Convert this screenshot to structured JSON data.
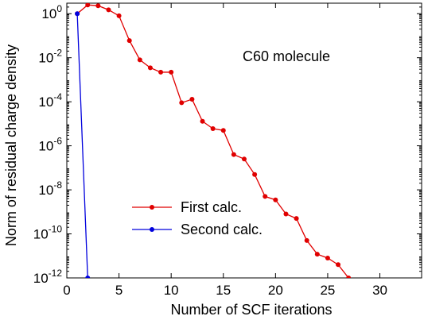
{
  "chart_data": {
    "type": "line",
    "xlabel": "Number of SCF iterations",
    "ylabel": "Norm of residual charge density",
    "xlim": [
      0,
      34
    ],
    "ylim": [
      1e-12,
      3
    ],
    "yscale": "log",
    "x_ticks": [
      0,
      5,
      10,
      15,
      20,
      25,
      30
    ],
    "y_tick_exponents": [
      0,
      -2,
      -4,
      -6,
      -8,
      -10,
      -12
    ],
    "y_tick_base": "10",
    "grid": false,
    "legend_position": "lower-center",
    "annotation": "C60 molecule",
    "series": [
      {
        "name": "First calc.",
        "color": "#e00000",
        "x": [
          1,
          2,
          3,
          4,
          5,
          6,
          7,
          8,
          9,
          10,
          11,
          12,
          13,
          14,
          15,
          16,
          17,
          18,
          19,
          20,
          21,
          22,
          23,
          24,
          25,
          26,
          27,
          28
        ],
        "y": [
          1.0,
          2.5,
          2.3,
          1.5,
          0.8,
          0.06,
          0.008,
          0.0035,
          0.0022,
          0.0022,
          9e-05,
          0.00013,
          1.3e-05,
          6e-06,
          5e-06,
          4e-07,
          2.5e-07,
          5e-08,
          5e-09,
          3.5e-09,
          8e-10,
          5e-10,
          5e-11,
          1.2e-11,
          8e-12,
          4e-12,
          1e-12,
          5e-13
        ]
      },
      {
        "name": "Second calc.",
        "color": "#0000dd",
        "x": [
          1,
          2
        ],
        "y": [
          1.0,
          1e-12
        ]
      }
    ]
  }
}
